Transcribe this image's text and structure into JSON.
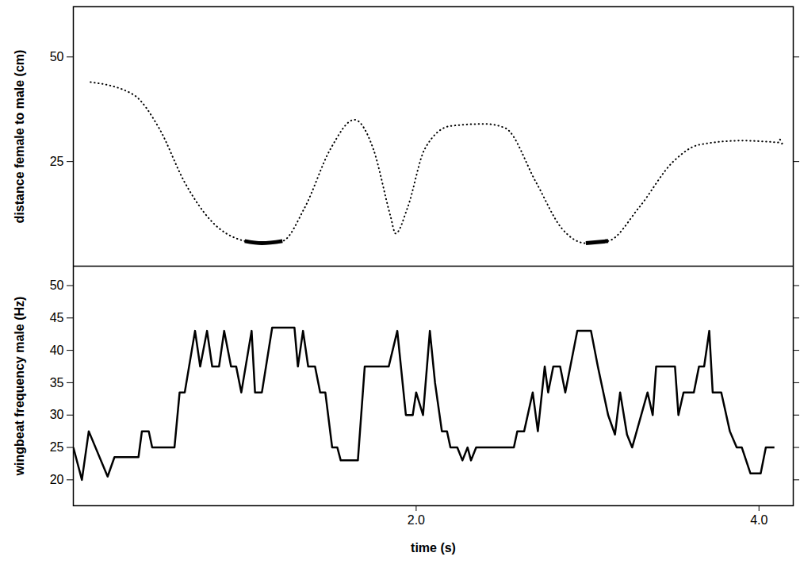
{
  "chart_data": [
    {
      "type": "line",
      "ylabel": "distance female to male (cm)",
      "xlim": [
        0,
        4.2
      ],
      "ylim": [
        0,
        62
      ],
      "yticks": [
        25,
        50
      ],
      "tick_labels": "y",
      "series": [
        {
          "color": "#000000",
          "line_style": "dotted",
          "marker": "arrow",
          "x": [
            0.1,
            0.35,
            0.5,
            0.65,
            0.8,
            1.0,
            1.1,
            1.22,
            1.35,
            1.5,
            1.64,
            1.75,
            1.85,
            1.88,
            1.95,
            2.05,
            2.2,
            2.4,
            2.52,
            2.7,
            2.85,
            2.99,
            3.12,
            3.3,
            3.5,
            3.65,
            3.9,
            4.13
          ],
          "values": [
            44,
            41,
            33,
            20,
            11,
            6,
            5.5,
            6,
            14,
            28,
            35,
            28,
            12,
            7.8,
            14,
            28,
            33.5,
            34,
            33,
            20,
            9,
            5.5,
            6,
            14,
            25,
            29,
            30,
            29.5
          ]
        },
        {
          "color": "#000000",
          "line_style": "solid",
          "x": [
            1.0,
            1.1,
            1.22
          ],
          "values": [
            6,
            5.5,
            6
          ]
        },
        {
          "color": "#000000",
          "line_style": "solid",
          "x": [
            2.99,
            3.12
          ],
          "values": [
            5.5,
            6
          ]
        }
      ]
    },
    {
      "type": "line",
      "xlabel": "time (s)",
      "ylabel": "wingbeat frequency male (Hz)",
      "xlim": [
        0,
        4.2
      ],
      "ylim": [
        16,
        53
      ],
      "xticks": [
        2,
        4
      ],
      "yticks": [
        20,
        25,
        30,
        35,
        40,
        45,
        50
      ],
      "series": [
        {
          "color": "#000000",
          "line_style": "solid",
          "x": [
            0.0,
            0.05,
            0.09,
            0.2,
            0.24,
            0.38,
            0.4,
            0.44,
            0.46,
            0.59,
            0.62,
            0.65,
            0.71,
            0.74,
            0.78,
            0.81,
            0.85,
            0.88,
            0.92,
            0.95,
            0.98,
            1.04,
            1.06,
            1.1,
            1.16,
            1.29,
            1.31,
            1.34,
            1.37,
            1.41,
            1.44,
            1.47,
            1.51,
            1.54,
            1.56,
            1.66,
            1.7,
            1.84,
            1.89,
            1.94,
            1.98,
            2.0,
            2.04,
            2.08,
            2.11,
            2.15,
            2.18,
            2.2,
            2.24,
            2.27,
            2.3,
            2.32,
            2.35,
            2.57,
            2.59,
            2.63,
            2.68,
            2.71,
            2.75,
            2.77,
            2.8,
            2.84,
            2.87,
            2.94,
            3.02,
            3.06,
            3.12,
            3.16,
            3.19,
            3.23,
            3.26,
            3.35,
            3.38,
            3.4,
            3.51,
            3.53,
            3.56,
            3.62,
            3.65,
            3.68,
            3.71,
            3.73,
            3.78,
            3.83,
            3.87,
            3.9,
            3.95,
            4.01,
            4.04,
            4.09
          ],
          "values": [
            25,
            20,
            27.5,
            20.5,
            23.5,
            23.5,
            27.5,
            27.5,
            25,
            25,
            33.5,
            33.5,
            43,
            37.5,
            43,
            37.5,
            37.5,
            43,
            37.5,
            37.5,
            33.5,
            43,
            33.5,
            33.5,
            43.5,
            43.5,
            37.5,
            43,
            37.5,
            37.5,
            33.5,
            33.5,
            25,
            25,
            23,
            23,
            37.5,
            37.5,
            43,
            30,
            30,
            33.5,
            30,
            43,
            35,
            27.5,
            27.5,
            25,
            25,
            23,
            25,
            23,
            25,
            25,
            27.5,
            27.5,
            33.5,
            27.5,
            37.5,
            33.5,
            37.5,
            37.5,
            33.5,
            43,
            43,
            37.5,
            30,
            27,
            33.5,
            27,
            25,
            33.5,
            30,
            37.5,
            37.5,
            30,
            33.5,
            33.5,
            37.5,
            37.5,
            43,
            33.5,
            33.5,
            27.5,
            25,
            25,
            21,
            21,
            25,
            25
          ]
        }
      ]
    }
  ]
}
